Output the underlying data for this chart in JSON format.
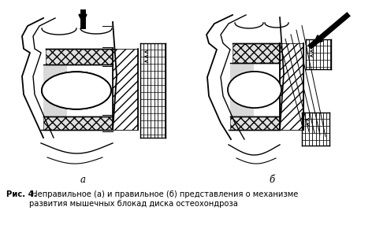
{
  "fig_width": 4.91,
  "fig_height": 3.05,
  "dpi": 100,
  "bg_color": "#f5f5f0",
  "caption_bold": "Рис. 4.",
  "caption_normal": " Неправильное (а) и правильное (б) представления о механизме\nразвития мышечных блокад диска остеохондроза",
  "label_a": "а",
  "label_b": "б",
  "caption_fontsize": 7.2,
  "label_fontsize": 8.5
}
